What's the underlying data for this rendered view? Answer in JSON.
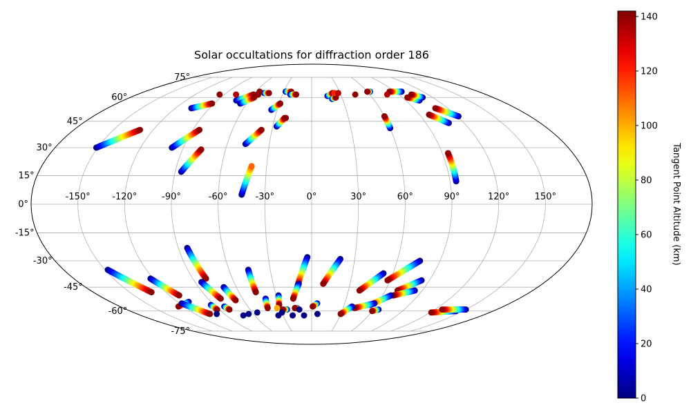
{
  "chart_data": {
    "type": "scatter",
    "projection": "mollweide",
    "title": "Solar occultations for diffraction order 186",
    "lon_ticks": [
      -150,
      -120,
      -90,
      -60,
      -30,
      0,
      30,
      60,
      90,
      120,
      150
    ],
    "lon_tick_labels": [
      "-150°",
      "-120°",
      "-90°",
      "-60°",
      "-30°",
      "0°",
      "30°",
      "60°",
      "90°",
      "120°",
      "150°"
    ],
    "lat_ticks": [
      75,
      60,
      45,
      30,
      15,
      0,
      -15,
      -30,
      -45,
      -60,
      -75
    ],
    "lat_tick_labels": [
      "75°",
      "60°",
      "45°",
      "30°",
      "15°",
      "0°",
      "-15°",
      "-30°",
      "-45°",
      "-60°",
      "-75°"
    ],
    "grid": true,
    "colorbar": {
      "label": "Tangent Point Altitude (km)",
      "min": 0,
      "max": 142,
      "colormap": "jet",
      "ticks": [
        0,
        20,
        40,
        60,
        80,
        100,
        120,
        140
      ],
      "tick_labels": [
        "0",
        "20",
        "40",
        "60",
        "80",
        "100",
        "120",
        "140"
      ]
    },
    "tracks": [
      {
        "lon0": -151,
        "lat0": 30,
        "lon1": -130,
        "lat1": 40,
        "alt0": 0,
        "alt1": 140
      },
      {
        "lon0": -98,
        "lat0": 30,
        "lon1": -85,
        "lat1": 40,
        "alt0": 0,
        "alt1": 140
      },
      {
        "lon0": -86,
        "lat0": 17,
        "lon1": -77,
        "lat1": 29,
        "alt0": 0,
        "alt1": 140
      },
      {
        "lon0": -45,
        "lat0": 5,
        "lon1": -40,
        "lat1": 20,
        "alt0": 0,
        "alt1": 110
      },
      {
        "lon0": -47,
        "lat0": 32,
        "lon1": -38,
        "lat1": 40,
        "alt0": 0,
        "alt1": 140
      },
      {
        "lon0": -106,
        "lat0": 53,
        "lon1": -92,
        "lat1": 56,
        "alt0": 0,
        "alt1": 140
      },
      {
        "lon0": -35,
        "lat0": 52,
        "lon1": -29,
        "lat1": 56,
        "alt0": 0,
        "alt1": 140
      },
      {
        "lon0": -27,
        "lat0": 42,
        "lon1": -22,
        "lat1": 47,
        "alt0": 0,
        "alt1": 140
      },
      {
        "lon0": -65,
        "lat0": 60,
        "lon1": -55,
        "lat1": 62,
        "alt0": 0,
        "alt1": 140
      },
      {
        "lon0": -72,
        "lat0": 58,
        "lon1": -60,
        "lat1": 62,
        "alt0": 0,
        "alt1": 140
      },
      {
        "lon0": -66,
        "lat0": 56,
        "lon1": -57,
        "lat1": 60,
        "alt0": 0,
        "alt1": 140
      },
      {
        "lon0": -50,
        "lat0": 63,
        "lon1": -45,
        "lat1": 63,
        "alt0": 0,
        "alt1": 140
      },
      {
        "lon0": -28,
        "lat0": 64,
        "lon1": -22,
        "lat1": 64,
        "alt0": 0,
        "alt1": 140
      },
      {
        "lon0": -22,
        "lat0": 62,
        "lon1": -16,
        "lat1": 62,
        "alt0": 0,
        "alt1": 140
      },
      {
        "lon0": 16,
        "lat0": 61,
        "lon1": 22,
        "lat1": 63,
        "alt0": 0,
        "alt1": 140
      },
      {
        "lon0": 20,
        "lat0": 59,
        "lon1": 24,
        "lat1": 60,
        "alt0": 0,
        "alt1": 140
      },
      {
        "lon0": 60,
        "lat0": 41,
        "lon1": 60,
        "lat1": 48,
        "alt0": 0,
        "alt1": 140
      },
      {
        "lon0": 94,
        "lat0": 12,
        "lon1": 94,
        "lat1": 27,
        "alt0": 0,
        "alt1": 140
      },
      {
        "lon0": 108,
        "lat0": 44,
        "lon1": 98,
        "lat1": 49,
        "alt0": 0,
        "alt1": 140
      },
      {
        "lon0": 121,
        "lat0": 48,
        "lon1": 109,
        "lat1": 53,
        "alt0": 0,
        "alt1": 140
      },
      {
        "lon0": 103,
        "lat0": 58,
        "lon1": 95,
        "lat1": 60,
        "alt0": 0,
        "alt1": 140
      },
      {
        "lon0": 110,
        "lat0": 60,
        "lon1": 103,
        "lat1": 62,
        "alt0": 0,
        "alt1": 140
      },
      {
        "lon0": 97,
        "lat0": 64,
        "lon1": 84,
        "lat1": 64,
        "alt0": 0,
        "alt1": 140
      },
      {
        "lon0": 63,
        "lat0": 64,
        "lon1": 60,
        "lat1": 64,
        "alt0": 0,
        "alt1": 140
      },
      {
        "lon0": -148,
        "lat0": -35,
        "lon1": -132,
        "lat1": -48,
        "alt0": 0,
        "alt1": 140
      },
      {
        "lon0": -122,
        "lat0": -40,
        "lon1": -112,
        "lat1": -50,
        "alt0": 0,
        "alt1": 140
      },
      {
        "lon0": -84,
        "lat0": -23,
        "lon1": -80,
        "lat1": -40,
        "alt0": 0,
        "alt1": 140
      },
      {
        "lon0": -85,
        "lat0": -42,
        "lon1": -79,
        "lat1": -52,
        "alt0": 0,
        "alt1": 140
      },
      {
        "lon0": -70,
        "lat0": -45,
        "lon1": -67,
        "lat1": -53,
        "alt0": 0,
        "alt1": 140
      },
      {
        "lon0": -46,
        "lat0": -35,
        "lon1": -46,
        "lat1": -48,
        "alt0": 0,
        "alt1": 140
      },
      {
        "lon0": -40,
        "lat0": -52,
        "lon1": -42,
        "lat1": -58,
        "alt0": 0,
        "alt1": 140
      },
      {
        "lon0": -28,
        "lat0": -50,
        "lon1": -30,
        "lat1": -56,
        "alt0": 0,
        "alt1": 140
      },
      {
        "lon0": -3,
        "lat0": -28,
        "lon1": -11,
        "lat1": -44,
        "alt0": 0,
        "alt1": 140
      },
      {
        "lon0": -10,
        "lat0": -43,
        "lon1": -16,
        "lat1": -52,
        "alt0": 0,
        "alt1": 140
      },
      {
        "lon0": 20,
        "lat0": -29,
        "lon1": 9,
        "lat1": -43,
        "alt0": 0,
        "alt1": 140
      },
      {
        "lon0": 53,
        "lat0": -37,
        "lon1": 39,
        "lat1": -47,
        "alt0": 0,
        "alt1": 140
      },
      {
        "lon0": 76,
        "lat0": -30,
        "lon1": 58,
        "lat1": -41,
        "alt0": 0,
        "alt1": 140
      },
      {
        "lon0": 84,
        "lat0": -41,
        "lon1": 70,
        "lat1": -47,
        "alt0": 0,
        "alt1": 140
      },
      {
        "lon0": 84,
        "lat0": -47,
        "lon1": 69,
        "lat1": -50,
        "alt0": 0,
        "alt1": 140
      },
      {
        "lon0": 67,
        "lat0": -50,
        "lon1": 54,
        "lat1": -56,
        "alt0": 0,
        "alt1": 140
      },
      {
        "lon0": 57,
        "lat0": -55,
        "lon1": 41,
        "lat1": -58,
        "alt0": 0,
        "alt1": 140
      },
      {
        "lon0": 38,
        "lat0": -57,
        "lon1": 30,
        "lat1": -62,
        "alt0": 0,
        "alt1": 140
      },
      {
        "lon0": 65,
        "lat0": -59,
        "lon1": 60,
        "lat1": -60,
        "alt0": 0,
        "alt1": 140
      },
      {
        "lon0": 143,
        "lat0": -60,
        "lon1": 121,
        "lat1": -61,
        "alt0": 0,
        "alt1": 140
      },
      {
        "lon0": 150,
        "lat0": -59,
        "lon1": 127,
        "lat1": -59,
        "alt0": 0,
        "alt1": 140
      },
      {
        "lon0": -110,
        "lat0": -54,
        "lon1": -125,
        "lat1": -57,
        "alt0": 0,
        "alt1": 140
      },
      {
        "lon0": -118,
        "lat0": -55,
        "lon1": -105,
        "lat1": -62,
        "alt0": 0,
        "alt1": 140
      },
      {
        "lon0": -82,
        "lat0": -57,
        "lon1": -80,
        "lat1": -59,
        "alt0": 0,
        "alt1": 140
      },
      {
        "lon0": -93,
        "lat0": -56,
        "lon1": -92,
        "lat1": -59,
        "alt0": 0,
        "alt1": 140
      },
      {
        "lon0": -24,
        "lat0": -59,
        "lon1": -28,
        "lat1": -59,
        "alt0": 0,
        "alt1": 140
      },
      {
        "lon0": -14,
        "lat0": -58,
        "lon1": -16,
        "lat1": -58,
        "alt0": 0,
        "alt1": 140
      },
      {
        "lon0": 5,
        "lat0": -55,
        "lon1": 1,
        "lat1": -57,
        "alt0": 0,
        "alt1": 140
      }
    ],
    "points": [
      {
        "lon": -78,
        "lat": 62,
        "alt": 135
      },
      {
        "lon": -95,
        "lat": 62,
        "alt": 140
      },
      {
        "lon": -56,
        "lat": 64,
        "alt": 140
      },
      {
        "lon": 24,
        "lat": 63,
        "alt": 120
      },
      {
        "lon": 28,
        "lat": 63,
        "alt": 135
      },
      {
        "lon": 45,
        "lat": 62,
        "alt": 140
      },
      {
        "lon": 78,
        "lat": 62,
        "alt": 135
      },
      {
        "lon": -21,
        "lat": 47,
        "alt": 140
      },
      {
        "lon": -65,
        "lat": -62,
        "alt": 0
      },
      {
        "lon": -55,
        "lat": -61,
        "alt": 0
      },
      {
        "lon": -72,
        "lat": -63,
        "alt": 0
      },
      {
        "lon": -98,
        "lat": -62,
        "alt": 0
      },
      {
        "lon": -35,
        "lat": -63,
        "alt": 0
      },
      {
        "lon": -20,
        "lat": -63,
        "alt": 0
      },
      {
        "lon": -8,
        "lat": -63,
        "alt": 0
      },
      {
        "lon": 6,
        "lat": -62,
        "alt": 0
      },
      {
        "lon": -30,
        "lat": -61,
        "alt": 0
      },
      {
        "lon": -12,
        "lat": -59,
        "alt": 0
      },
      {
        "lon": -33,
        "lat": -58,
        "alt": 100
      }
    ]
  }
}
